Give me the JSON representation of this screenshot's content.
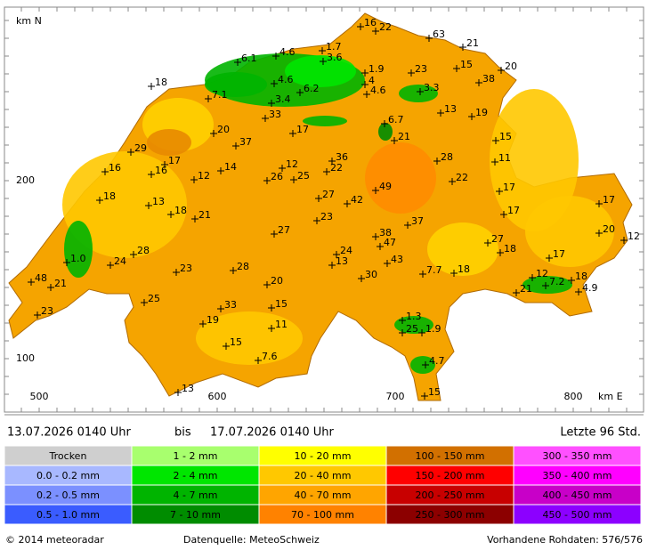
{
  "map": {
    "axis": {
      "y_title": "km N",
      "y_labels": [
        "200",
        "100"
      ],
      "x_labels": [
        "500",
        "600",
        "700",
        "800"
      ],
      "x_title": "km E"
    },
    "stations": [
      "16",
      "22",
      "63",
      "21",
      "1.7",
      "4.6",
      "6.1",
      "3.6",
      "15",
      "20",
      "23",
      "1.9",
      "18",
      "4.6",
      "4",
      "38",
      "4.6",
      "3.3",
      "6.2",
      "7.1",
      "3.4",
      "13",
      "19",
      "33",
      "6.7",
      "17",
      "20",
      "21",
      "15",
      "37",
      "29",
      "36",
      "28",
      "11",
      "17",
      "22",
      "12",
      "14",
      "16",
      "16",
      "26",
      "25",
      "22",
      "12",
      "49",
      "17",
      "18",
      "17",
      "27",
      "42",
      "13",
      "18",
      "21",
      "17",
      "23",
      "37",
      "27",
      "20",
      "12",
      "38",
      "47",
      "27",
      "18",
      "28",
      "24",
      "13",
      "43",
      "17",
      "24",
      "1.0",
      "23",
      "28",
      "7.7",
      "18",
      "12",
      "30",
      "7.2",
      "18",
      "48",
      "21",
      "20",
      "21",
      "4.9",
      "25",
      "33",
      "15",
      "23",
      "1.3",
      "19",
      "11",
      "1.9",
      "25",
      "15",
      "7.6",
      "4.7",
      "13",
      "15"
    ]
  },
  "period": {
    "from": "13.07.2026 0140 Uhr",
    "separator": "bis",
    "to": "17.07.2026 0140 Uhr",
    "window": "Letzte 96 Std."
  },
  "legend": [
    [
      {
        "label": "Trocken",
        "color": "#cfcfcf"
      },
      {
        "label": "0.0 - 0.2 mm",
        "color": "#a8b8ff"
      },
      {
        "label": "0.2 - 0.5 mm",
        "color": "#7b90ff"
      },
      {
        "label": "0.5 - 1.0 mm",
        "color": "#3a5cff"
      }
    ],
    [
      {
        "label": "1 - 2 mm",
        "color": "#a8ff6e"
      },
      {
        "label": "2 - 4 mm",
        "color": "#00e600"
      },
      {
        "label": "4 - 7 mm",
        "color": "#00b400"
      },
      {
        "label": "7 - 10 mm",
        "color": "#008c00"
      }
    ],
    [
      {
        "label": "10 - 20 mm",
        "color": "#ffff00"
      },
      {
        "label": "20 - 40 mm",
        "color": "#ffc800"
      },
      {
        "label": "40 - 70 mm",
        "color": "#ffa500"
      },
      {
        "label": "70 - 100 mm",
        "color": "#ff8200"
      }
    ],
    [
      {
        "label": "100 - 150 mm",
        "color": "#d27000"
      },
      {
        "label": "150 - 200 mm",
        "color": "#ff0000"
      },
      {
        "label": "200 - 250 mm",
        "color": "#c80000"
      },
      {
        "label": "250 - 300 mm",
        "color": "#8c0000"
      }
    ],
    [
      {
        "label": "300 - 350 mm",
        "color": "#ff50ff"
      },
      {
        "label": "350 - 400 mm",
        "color": "#ff00ff"
      },
      {
        "label": "400 - 450 mm",
        "color": "#c800c8"
      },
      {
        "label": "450 - 500 mm",
        "color": "#8c00ff"
      }
    ]
  ],
  "footer": {
    "copyright": "© 2014  meteoradar",
    "source": "Datenquelle: MeteoSchweiz",
    "raw": "Vorhandene Rohdaten: 576/576"
  }
}
